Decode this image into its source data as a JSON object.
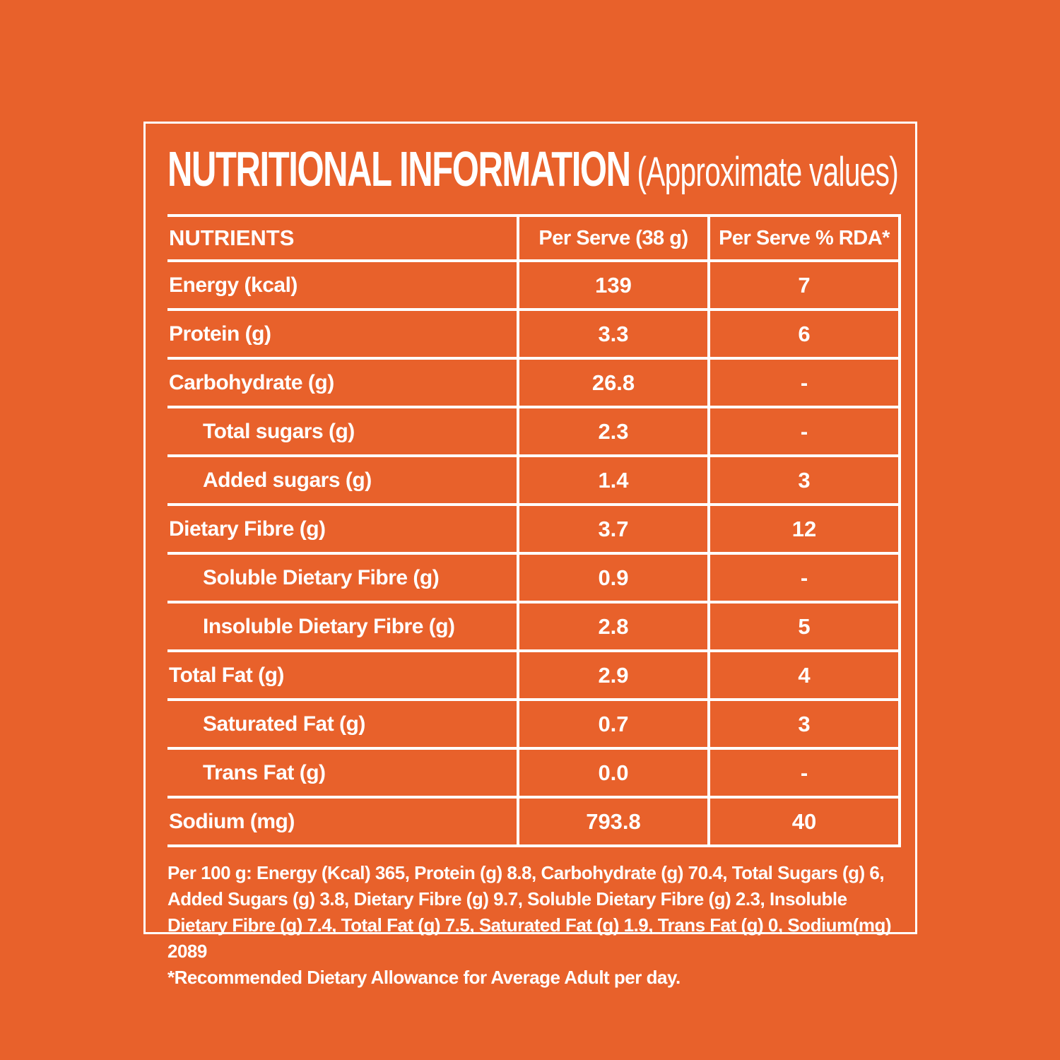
{
  "colors": {
    "background": "#E8612B",
    "text": "#FFFFFF"
  },
  "title": {
    "main": "NUTRITIONAL INFORMATION",
    "sub": "(Approximate values)"
  },
  "table": {
    "headers": {
      "nutrients": "NUTRIENTS",
      "per_serve": "Per Serve (38 g)",
      "per_serve_rda": "Per Serve % RDA*"
    },
    "rows": [
      {
        "nutrient": "Energy (kcal)",
        "per_serve": "139",
        "rda": "7",
        "indent": false
      },
      {
        "nutrient": "Protein (g)",
        "per_serve": "3.3",
        "rda": "6",
        "indent": false
      },
      {
        "nutrient": "Carbohydrate (g)",
        "per_serve": "26.8",
        "rda": "-",
        "indent": false
      },
      {
        "nutrient": "Total sugars (g)",
        "per_serve": "2.3",
        "rda": "-",
        "indent": true
      },
      {
        "nutrient": "Added sugars (g)",
        "per_serve": "1.4",
        "rda": "3",
        "indent": true
      },
      {
        "nutrient": "Dietary Fibre (g)",
        "per_serve": "3.7",
        "rda": "12",
        "indent": false
      },
      {
        "nutrient": "Soluble Dietary Fibre (g)",
        "per_serve": "0.9",
        "rda": "-",
        "indent": true
      },
      {
        "nutrient": "Insoluble Dietary Fibre (g)",
        "per_serve": "2.8",
        "rda": "5",
        "indent": true
      },
      {
        "nutrient": "Total Fat (g)",
        "per_serve": "2.9",
        "rda": "4",
        "indent": false
      },
      {
        "nutrient": "Saturated Fat (g)",
        "per_serve": "0.7",
        "rda": "3",
        "indent": true
      },
      {
        "nutrient": "Trans Fat (g)",
        "per_serve": "0.0",
        "rda": "-",
        "indent": true
      },
      {
        "nutrient": "Sodium (mg)",
        "per_serve": "793.8",
        "rda": "40",
        "indent": false
      }
    ]
  },
  "footnotes": {
    "per_100g": "Per 100 g: Energy (Kcal) 365, Protein (g) 8.8, Carbohydrate (g) 70.4, Total Sugars (g) 6, Added Sugars (g) 3.8, Dietary Fibre (g) 9.7, Soluble Dietary Fibre (g) 2.3, Insoluble Dietary Fibre (g) 7.4, Total Fat (g) 7.5, Saturated Fat (g) 1.9, Trans Fat (g) 0, Sodium(mg) 2089",
    "rda_note": "*Recommended Dietary Allowance for Average Adult per day."
  }
}
